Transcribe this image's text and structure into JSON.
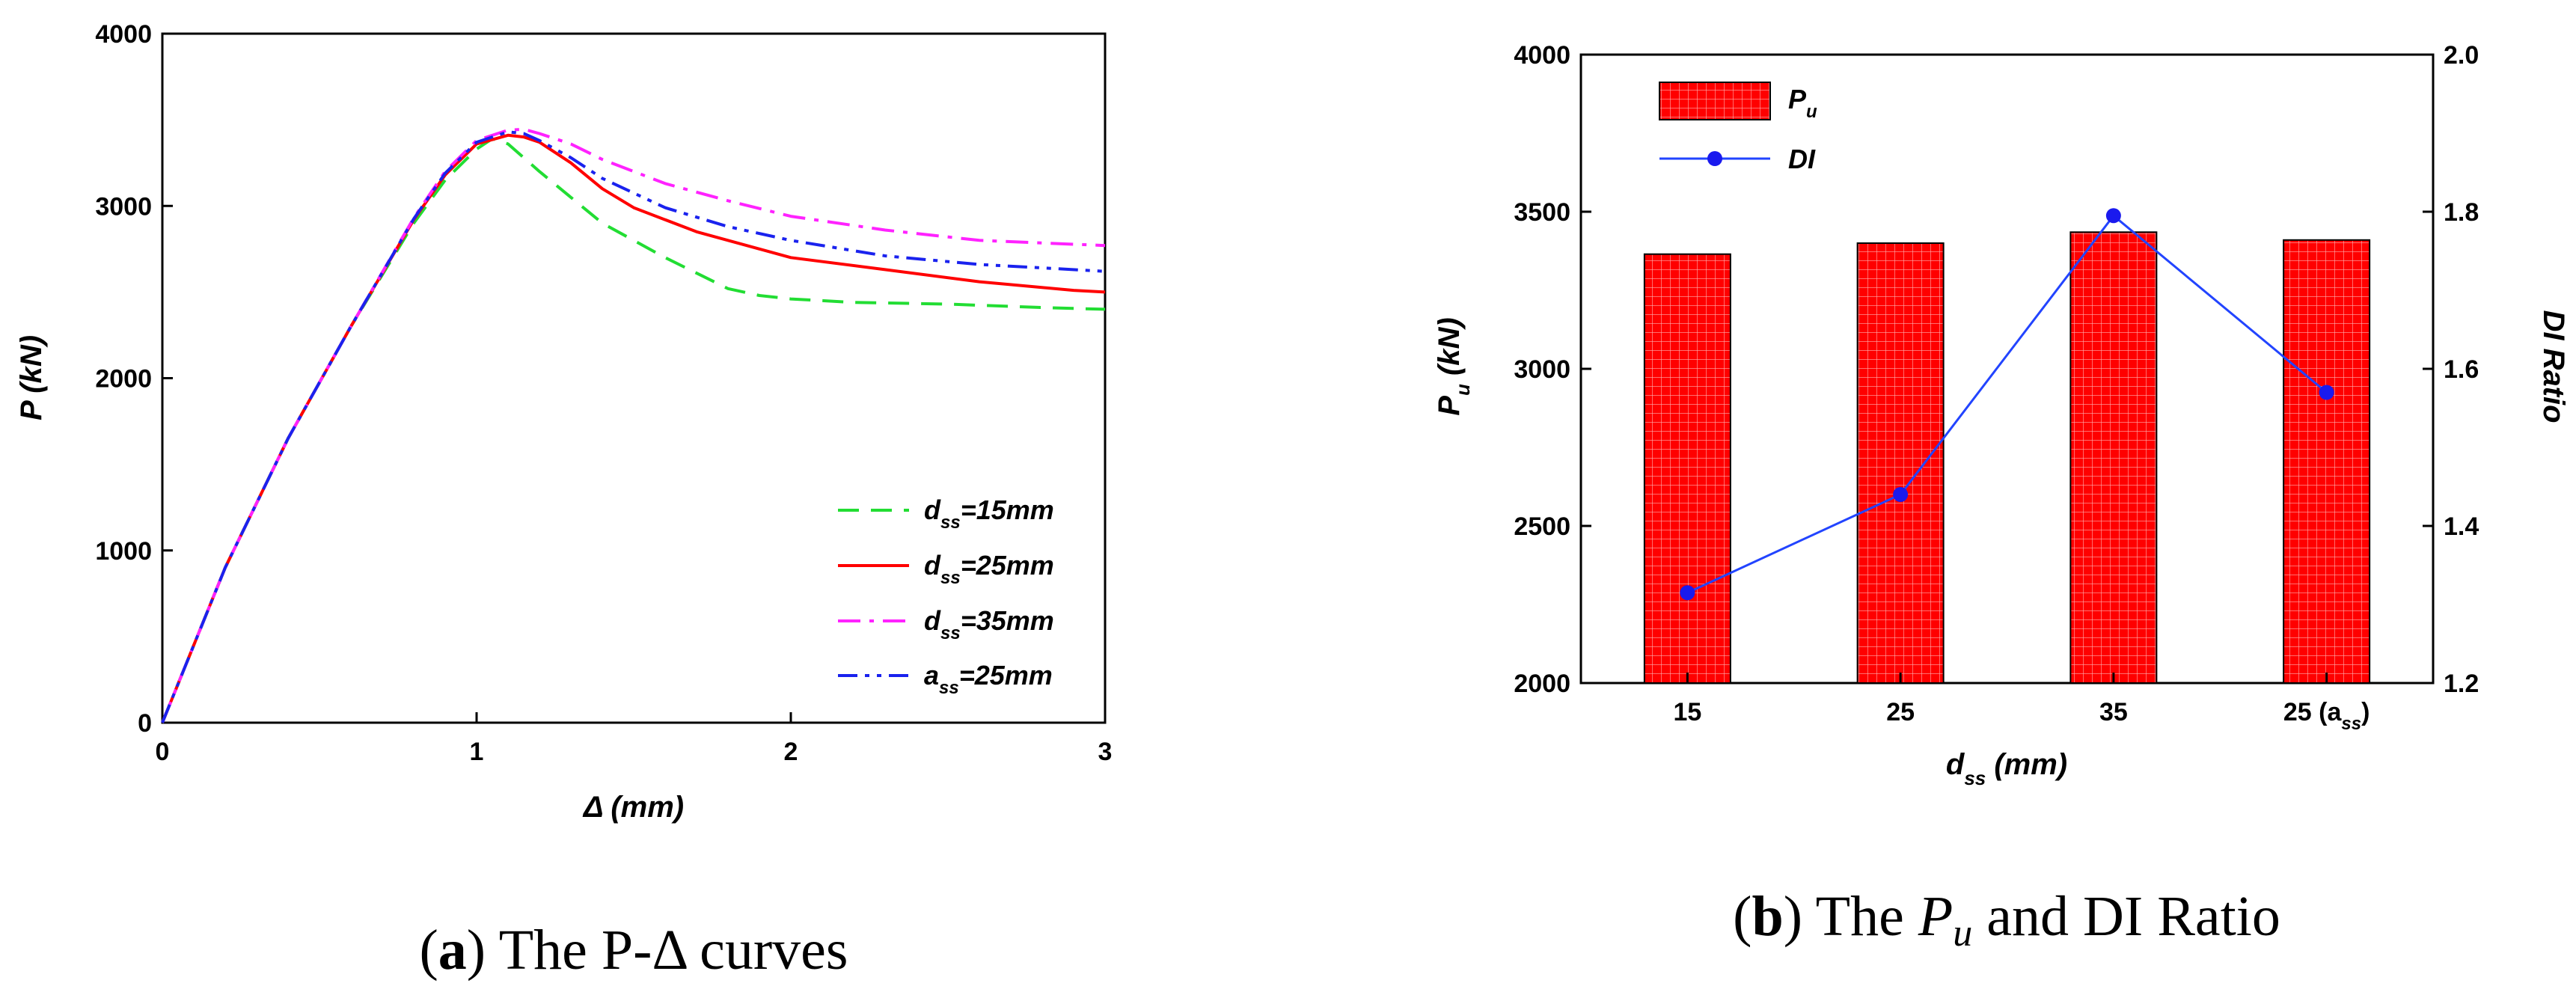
{
  "colors": {
    "green": "#22dd33",
    "red": "#ff0000",
    "magenta": "#ff22ff",
    "blue": "#1a22ee",
    "bar_fill": "#ff0000",
    "bar_grid": "#ffb0b0",
    "di_line": "#2244ff",
    "di_marker": "#1a1aee"
  },
  "chart_data": [
    {
      "type": "line",
      "title": "",
      "xlabel": "Δ (mm)",
      "ylabel": "P (kN)",
      "xlim": [
        0,
        3
      ],
      "ylim": [
        0,
        4000
      ],
      "xticks": [
        "0",
        "1",
        "2",
        "3"
      ],
      "yticks": [
        "0",
        "1000",
        "2000",
        "3000",
        "4000"
      ],
      "caption_bold": "a",
      "caption_text": ") The P-Δ curves",
      "series": [
        {
          "name": "dss=15mm",
          "legend_main": "d",
          "legend_sub": "ss",
          "legend_rest": "=15mm",
          "style": "dashed",
          "color_key": "green",
          "x": [
            0,
            0.2,
            0.4,
            0.6,
            0.8,
            0.9,
            1.0,
            1.05,
            1.1,
            1.2,
            1.4,
            1.6,
            1.8,
            1.9,
            2.0,
            2.2,
            2.5,
            2.8,
            3.0
          ],
          "y": [
            0,
            900,
            1650,
            2300,
            2900,
            3150,
            3330,
            3390,
            3360,
            3200,
            2900,
            2700,
            2520,
            2480,
            2460,
            2440,
            2430,
            2410,
            2400
          ]
        },
        {
          "name": "dss=25mm",
          "legend_main": "d",
          "legend_sub": "ss",
          "legend_rest": "=25mm",
          "style": "solid",
          "color_key": "red",
          "x": [
            0,
            0.2,
            0.4,
            0.6,
            0.8,
            0.9,
            1.0,
            1.1,
            1.15,
            1.2,
            1.3,
            1.4,
            1.5,
            1.7,
            1.9,
            2.0,
            2.3,
            2.6,
            2.9,
            3.0
          ],
          "y": [
            0,
            900,
            1650,
            2300,
            2920,
            3180,
            3360,
            3410,
            3400,
            3370,
            3250,
            3100,
            2990,
            2850,
            2750,
            2700,
            2630,
            2560,
            2510,
            2500
          ]
        },
        {
          "name": "dss=35mm",
          "legend_main": "d",
          "legend_sub": "ss",
          "legend_rest": "=35mm",
          "style": "dashdot",
          "color_key": "magenta",
          "x": [
            0,
            0.2,
            0.4,
            0.6,
            0.8,
            0.9,
            1.0,
            1.1,
            1.15,
            1.2,
            1.3,
            1.4,
            1.6,
            1.8,
            2.0,
            2.3,
            2.6,
            3.0
          ],
          "y": [
            0,
            900,
            1650,
            2300,
            2930,
            3200,
            3380,
            3440,
            3445,
            3420,
            3360,
            3270,
            3130,
            3030,
            2940,
            2860,
            2800,
            2770
          ]
        },
        {
          "name": "ass=25mm",
          "legend_main": "a",
          "legend_sub": "ss",
          "legend_rest": "=25mm",
          "style": "dashdotdot",
          "color_key": "blue",
          "x": [
            0,
            0.2,
            0.4,
            0.6,
            0.8,
            0.9,
            1.0,
            1.1,
            1.15,
            1.2,
            1.3,
            1.4,
            1.6,
            1.8,
            2.0,
            2.3,
            2.6,
            3.0
          ],
          "y": [
            0,
            900,
            1650,
            2300,
            2925,
            3190,
            3370,
            3430,
            3420,
            3380,
            3280,
            3160,
            2990,
            2880,
            2800,
            2710,
            2660,
            2620
          ]
        }
      ]
    },
    {
      "type": "bar",
      "title": "",
      "categories": [
        "15",
        "25",
        "35",
        "25 (ass)"
      ],
      "category_labels": [
        {
          "main": "15",
          "sub": "",
          "tail": ""
        },
        {
          "main": "25",
          "sub": "",
          "tail": ""
        },
        {
          "main": "35",
          "sub": "",
          "tail": ""
        },
        {
          "main": "25 (a",
          "sub": "ss",
          "tail": ")"
        }
      ],
      "xlabel_main": "d",
      "xlabel_sub": "ss",
      "xlabel_rest": "  (mm)",
      "ylabel_main": "P",
      "ylabel_sub": "u",
      "ylabel_rest": " (kN)",
      "y2label": "DI Ratio",
      "ylim": [
        2000,
        4000
      ],
      "y2lim": [
        1.2,
        2.0
      ],
      "yticks": [
        "2000",
        "2500",
        "3000",
        "3500",
        "4000"
      ],
      "y2ticks": [
        "1.2",
        "1.4",
        "1.6",
        "1.8",
        "2.0"
      ],
      "legend_pu_main": "P",
      "legend_pu_sub": "u",
      "legend_di": "DI",
      "caption_bold": "b",
      "caption_pre": ") The ",
      "caption_p": "P",
      "caption_u": "u",
      "caption_post": "  and DI Ratio",
      "series": [
        {
          "name": "Pu",
          "type": "bar",
          "values": [
            3365,
            3400,
            3435,
            3410
          ]
        },
        {
          "name": "DI",
          "type": "line",
          "axis": "right",
          "values": [
            1.315,
            1.44,
            1.795,
            1.57
          ]
        }
      ]
    }
  ]
}
